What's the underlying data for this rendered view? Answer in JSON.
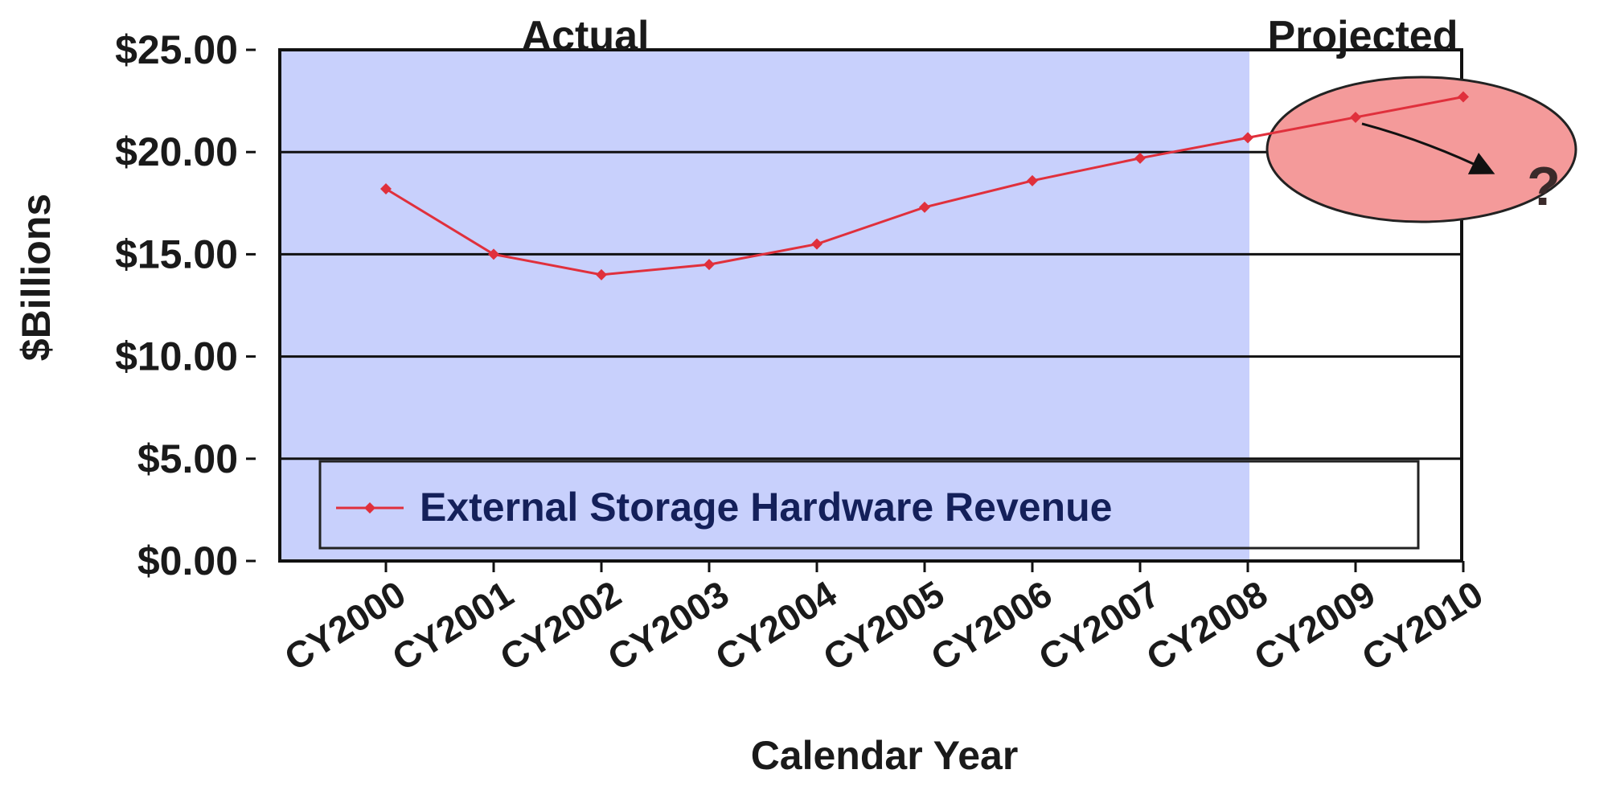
{
  "chart_data": {
    "type": "line",
    "title": "",
    "xlabel": "Calendar Year",
    "ylabel": "$Billions",
    "categories": [
      "CY2000",
      "CY2001",
      "CY2002",
      "CY2003",
      "CY2004",
      "CY2005",
      "CY2006",
      "CY2007",
      "CY2008",
      "CY2009",
      "CY2010"
    ],
    "series": [
      {
        "name": "External Storage Hardware Revenue",
        "values": [
          18.2,
          15.0,
          14.0,
          14.5,
          15.5,
          17.3,
          18.6,
          19.7,
          20.7,
          21.7,
          22.7
        ],
        "color": "#e0303c"
      }
    ],
    "ylim": [
      0,
      25
    ],
    "yticks": [
      0,
      5,
      10,
      15,
      20,
      25
    ],
    "ytick_labels": [
      "$0.00",
      "$5.00",
      "$10.00",
      "$15.00",
      "$20.00",
      "$25.00"
    ],
    "grid": true,
    "legend_position": "bottom",
    "regions": [
      {
        "label": "Actual",
        "from": "CY2000",
        "to": "CY2008",
        "color": "#c8d0fc"
      },
      {
        "label": "Projected",
        "from": "CY2009",
        "to": "CY2010",
        "color": "#ffffff"
      }
    ],
    "annotations": [
      {
        "text": "?",
        "near": "CY2010",
        "shape": "ellipse",
        "color": "#f49a9a"
      }
    ]
  }
}
